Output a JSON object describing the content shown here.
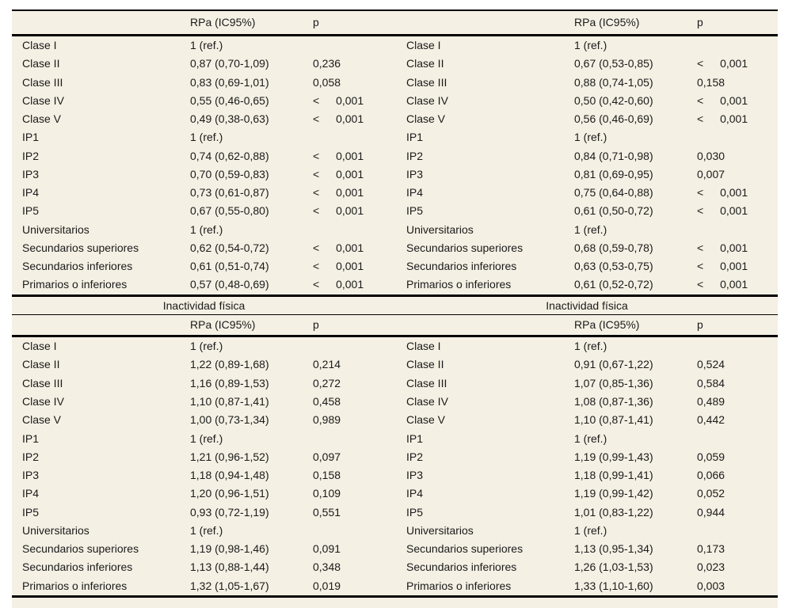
{
  "colors": {
    "page_background": "#ffffff",
    "table_background": "#f5f0e4",
    "rule_color": "#000000",
    "text_color": "#1a1a1a"
  },
  "sections": [
    {
      "title": "",
      "col_headers": {
        "label": "",
        "rpa": "RPa (IC95%)",
        "p": "p"
      },
      "panels": [
        {
          "rows": [
            {
              "label": "Clase I",
              "rpa": "1 (ref.)",
              "p": ""
            },
            {
              "label": "Clase II",
              "rpa": "0,87 (0,70-1,09)",
              "p": "0,236"
            },
            {
              "label": "Clase III",
              "rpa": "0,83 (0,69-1,01)",
              "p": "0,058"
            },
            {
              "label": "Clase IV",
              "rpa": "0,55 (0,46-0,65)",
              "p": "< 0,001"
            },
            {
              "label": "Clase V",
              "rpa": "0,49 (0,38-0,63)",
              "p": "< 0,001"
            },
            {
              "label": "IP1",
              "rpa": "1 (ref.)",
              "p": ""
            },
            {
              "label": "IP2",
              "rpa": "0,74 (0,62-0,88)",
              "p": "< 0,001"
            },
            {
              "label": "IP3",
              "rpa": "0,70 (0,59-0,83)",
              "p": "< 0,001"
            },
            {
              "label": "IP4",
              "rpa": "0,73 (0,61-0,87)",
              "p": "< 0,001"
            },
            {
              "label": "IP5",
              "rpa": "0,67 (0,55-0,80)",
              "p": "< 0,001"
            },
            {
              "label": "Universitarios",
              "rpa": "1 (ref.)",
              "p": ""
            },
            {
              "label": "Secundarios superiores",
              "rpa": "0,62 (0,54-0,72)",
              "p": "< 0,001"
            },
            {
              "label": "Secundarios inferiores",
              "rpa": "0,61 (0,51-0,74)",
              "p": "< 0,001"
            },
            {
              "label": "Primarios o inferiores",
              "rpa": "0,57 (0,48-0,69)",
              "p": "< 0,001"
            }
          ]
        },
        {
          "rows": [
            {
              "label": "Clase I",
              "rpa": "1 (ref.)",
              "p": ""
            },
            {
              "label": "Clase II",
              "rpa": "0,67 (0,53-0,85)",
              "p": "< 0,001"
            },
            {
              "label": "Clase III",
              "rpa": "0,88 (0,74-1,05)",
              "p": "0,158"
            },
            {
              "label": "Clase IV",
              "rpa": "0,50 (0,42-0,60)",
              "p": "< 0,001"
            },
            {
              "label": "Clase V",
              "rpa": "0,56 (0,46-0,69)",
              "p": "< 0,001"
            },
            {
              "label": "IP1",
              "rpa": "1 (ref.)",
              "p": ""
            },
            {
              "label": "IP2",
              "rpa": "0,84 (0,71-0,98)",
              "p": "0,030"
            },
            {
              "label": "IP3",
              "rpa": "0,81 (0,69-0,95)",
              "p": "0,007"
            },
            {
              "label": "IP4",
              "rpa": "0,75 (0,64-0,88)",
              "p": "< 0,001"
            },
            {
              "label": "IP5",
              "rpa": "0,61 (0,50-0,72)",
              "p": "< 0,001"
            },
            {
              "label": "Universitarios",
              "rpa": "1 (ref.)",
              "p": ""
            },
            {
              "label": "Secundarios superiores",
              "rpa": "0,68 (0,59-0,78)",
              "p": "< 0,001"
            },
            {
              "label": "Secundarios inferiores",
              "rpa": "0,63 (0,53-0,75)",
              "p": "< 0,001"
            },
            {
              "label": "Primarios o inferiores",
              "rpa": "0,61 (0,52-0,72)",
              "p": "< 0,001"
            }
          ]
        }
      ]
    },
    {
      "title": "Inactividad física",
      "col_headers": {
        "label": "",
        "rpa": "RPa (IC95%)",
        "p": "p"
      },
      "panels": [
        {
          "rows": [
            {
              "label": "Clase I",
              "rpa": "1 (ref.)",
              "p": ""
            },
            {
              "label": "Clase II",
              "rpa": "1,22 (0,89-1,68)",
              "p": "0,214"
            },
            {
              "label": "Clase III",
              "rpa": "1,16 (0,89-1,53)",
              "p": "0,272"
            },
            {
              "label": "Clase IV",
              "rpa": "1,10 (0,87-1,41)",
              "p": "0,458"
            },
            {
              "label": "Clase V",
              "rpa": "1,00 (0,73-1,34)",
              "p": "0,989"
            },
            {
              "label": "IP1",
              "rpa": "1 (ref.)",
              "p": ""
            },
            {
              "label": "IP2",
              "rpa": "1,21 (0,96-1,52)",
              "p": "0,097"
            },
            {
              "label": "IP3",
              "rpa": "1,18 (0,94-1,48)",
              "p": "0,158"
            },
            {
              "label": "IP4",
              "rpa": "1,20 (0,96-1,51)",
              "p": "0,109"
            },
            {
              "label": "IP5",
              "rpa": "0,93 (0,72-1,19)",
              "p": "0,551"
            },
            {
              "label": "Universitarios",
              "rpa": "1 (ref.)",
              "p": ""
            },
            {
              "label": "Secundarios superiores",
              "rpa": "1,19 (0,98-1,46)",
              "p": "0,091"
            },
            {
              "label": "Secundarios inferiores",
              "rpa": "1,13 (0,88-1,44)",
              "p": "0,348"
            },
            {
              "label": "Primarios o inferiores",
              "rpa": "1,32 (1,05-1,67)",
              "p": "0,019"
            }
          ]
        },
        {
          "rows": [
            {
              "label": "Clase I",
              "rpa": "1 (ref.)",
              "p": ""
            },
            {
              "label": "Clase II",
              "rpa": "0,91 (0,67-1,22)",
              "p": "0,524"
            },
            {
              "label": "Clase III",
              "rpa": "1,07 (0,85-1,36)",
              "p": "0,584"
            },
            {
              "label": "Clase IV",
              "rpa": "1,08 (0,87-1,36)",
              "p": "0,489"
            },
            {
              "label": "Clase V",
              "rpa": "1,10 (0,87-1,41)",
              "p": "0,442"
            },
            {
              "label": "IP1",
              "rpa": "1 (ref.)",
              "p": ""
            },
            {
              "label": "IP2",
              "rpa": "1,19 (0,99-1,43)",
              "p": "0,059"
            },
            {
              "label": "IP3",
              "rpa": "1,18 (0,99-1,41)",
              "p": "0,066"
            },
            {
              "label": "IP4",
              "rpa": "1,19 (0,99-1,42)",
              "p": "0,052"
            },
            {
              "label": "IP5",
              "rpa": "1,01 (0,83-1,22)",
              "p": "0,944"
            },
            {
              "label": "Universitarios",
              "rpa": "1 (ref.)",
              "p": ""
            },
            {
              "label": "Secundarios superiores",
              "rpa": "1,13 (0,95-1,34)",
              "p": "0,173"
            },
            {
              "label": "Secundarios inferiores",
              "rpa": "1,26 (1,03-1,53)",
              "p": "0,023"
            },
            {
              "label": "Primarios o inferiores",
              "rpa": "1,33 (1,10-1,60)",
              "p": "0,003"
            }
          ]
        }
      ]
    }
  ]
}
